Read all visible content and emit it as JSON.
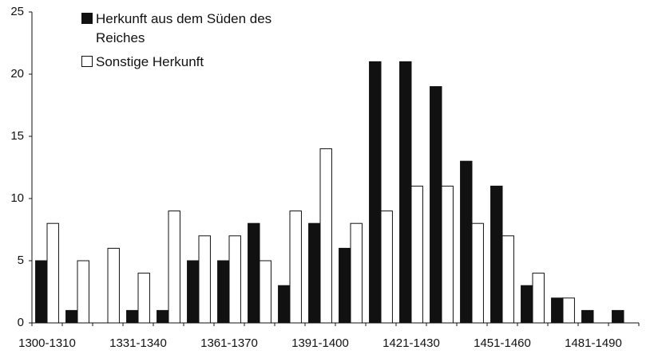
{
  "chart_data": {
    "type": "bar",
    "categories": [
      "1300-1310",
      null,
      null,
      "1331-1340",
      null,
      null,
      "1361-1370",
      null,
      null,
      "1391-1400",
      null,
      null,
      "1421-1430",
      null,
      null,
      "1451-1460",
      null,
      null,
      "1481-1490",
      null
    ],
    "series": [
      {
        "name": "Herkunft aus dem Süden des Reiches",
        "color": "#111111",
        "values": [
          5,
          1,
          0,
          1,
          1,
          5,
          5,
          8,
          3,
          8,
          6,
          21,
          21,
          19,
          13,
          11,
          3,
          2,
          1,
          1
        ]
      },
      {
        "name": "Sonstige Herkunft",
        "color": "#ffffff",
        "values": [
          8,
          5,
          6,
          4,
          9,
          7,
          7,
          5,
          9,
          14,
          8,
          9,
          11,
          11,
          8,
          7,
          4,
          2,
          0,
          0
        ]
      }
    ],
    "ylim": [
      0,
      25
    ],
    "yticks": [
      0,
      5,
      10,
      15,
      20,
      25
    ],
    "legend": "upper left"
  }
}
